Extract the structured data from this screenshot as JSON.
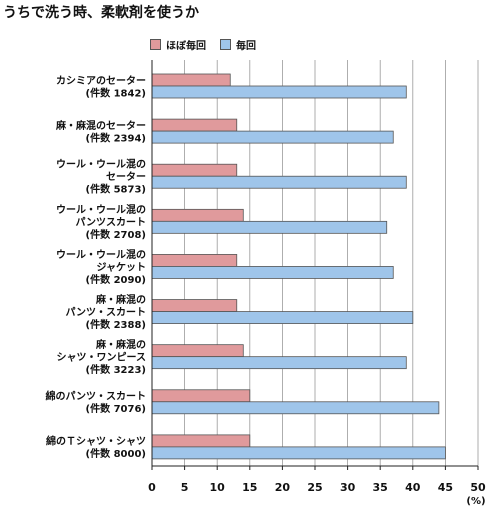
{
  "title": "うちで洗う時、柔軟剤を使うか",
  "chart_data": {
    "type": "bar",
    "orientation": "horizontal",
    "title": "うちで洗う時、柔軟剤を使うか",
    "unit_label": "(%)",
    "xlim": [
      0,
      50
    ],
    "xticks": [
      "0",
      "5",
      "10",
      "15",
      "20",
      "25",
      "30",
      "35",
      "40",
      "45",
      "50"
    ],
    "grid": true,
    "legend_position": "top",
    "categories": [
      [
        "カシミアのセーター",
        "(件数 1842)"
      ],
      [
        "麻・麻混のセーター",
        "(件数 2394)"
      ],
      [
        "ウール・ウール混の",
        "セーター",
        "(件数 5873)"
      ],
      [
        "ウール・ウール混の",
        "パンツスカート",
        "(件数 2708)"
      ],
      [
        "ウール・ウール混の",
        "ジャケット",
        "(件数 2090)"
      ],
      [
        "麻・麻混の",
        "パンツ・スカート",
        "(件数 2388)"
      ],
      [
        "麻・麻混の",
        "シャツ・ワンピース",
        "(件数 3223)"
      ],
      [
        "綿のパンツ・スカート",
        "(件数 7076)"
      ],
      [
        "綿のＴシャツ・シャツ",
        "(件数 8000)"
      ]
    ],
    "series": [
      {
        "name": "ほぼ毎回",
        "color": "#e09a9c",
        "values": [
          12,
          13,
          13,
          14,
          13,
          13,
          14,
          15,
          15
        ]
      },
      {
        "name": "毎回",
        "color": "#9fc5ea",
        "values": [
          39,
          37,
          39,
          36,
          37,
          40,
          39,
          44,
          45
        ]
      }
    ]
  }
}
